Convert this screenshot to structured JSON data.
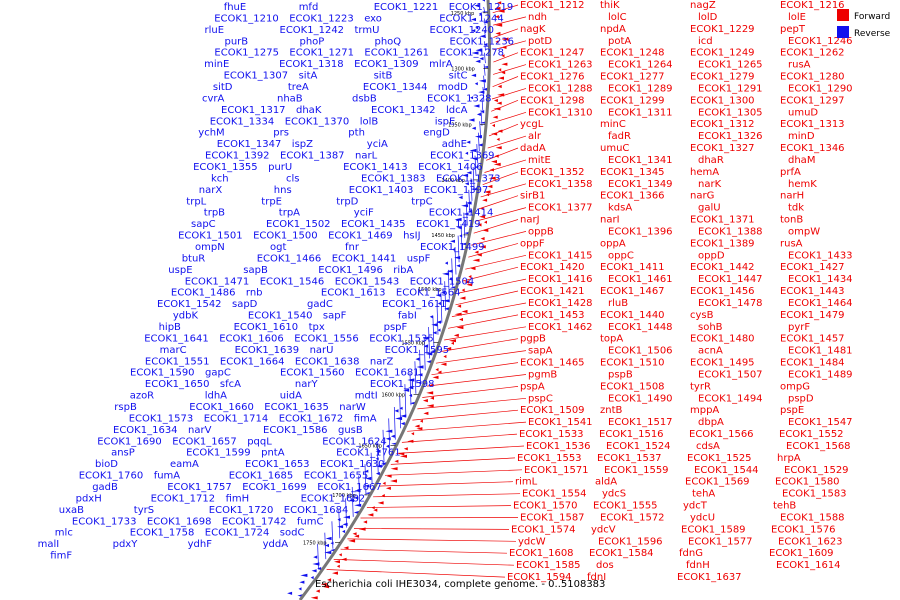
{
  "caption": "Escherichia coli IHE3034, complete genome. - 0..5108383",
  "legend": [
    {
      "label": "Forward",
      "color": "#ee0000"
    },
    {
      "label": "Reverse",
      "color": "#1010ee"
    }
  ],
  "colors": {
    "forward": "#ee0000",
    "reverse": "#1010ee",
    "backbone": "#777777"
  },
  "ticks": [
    "1250 kbp",
    "1300 kbp",
    "1350 kbp",
    "1400 kbp",
    "1450 kbp",
    "1500 kbp",
    "1550 kbp",
    "1600 kbp",
    "1650 kbp",
    "1700 kbp",
    "1750 kbp"
  ],
  "forward_labels": [
    "ECOK1_1212",
    "thiK",
    "nagZ",
    "ECOK1_1216",
    "ndh",
    "lolC",
    "lolD",
    "lolE",
    "nagK",
    "npdA",
    "ECOK1_1229",
    "pepT",
    "potD",
    "potA",
    "icd",
    "ECOK1_1246",
    "ECOK1_1247",
    "ECOK1_1248",
    "ECOK1_1249",
    "ECOK1_1262",
    "ECOK1_1263",
    "ECOK1_1264",
    "ECOK1_1265",
    "rusA",
    "ECOK1_1276",
    "ECOK1_1277",
    "ECOK1_1279",
    "ECOK1_1280",
    "ECOK1_1288",
    "ECOK1_1289",
    "ECOK1_1291",
    "ECOK1_1290",
    "ECOK1_1298",
    "ECOK1_1299",
    "ECOK1_1300",
    "ECOK1_1297",
    "ECOK1_1310",
    "ECOK1_1311",
    "ECOK1_1305",
    "umuD",
    "ycgL",
    "minC",
    "ECOK1_1312",
    "ECOK1_1313",
    "alr",
    "fadR",
    "ECOK1_1326",
    "minD",
    "dadA",
    "umuC",
    "ECOK1_1327",
    "ECOK1_1346",
    "mitE",
    "ECOK1_1341",
    "dhaR",
    "dhaM",
    "ECOK1_1352",
    "ECOK1_1345",
    "hemA",
    "prfA",
    "ECOK1_1358",
    "ECOK1_1349",
    "narK",
    "hemK",
    "sirB1",
    "ECOK1_1366",
    "narG",
    "narH",
    "ECOK1_1377",
    "kdsA",
    "galU",
    "tdk",
    "narJ",
    "narI",
    "ECOK1_1371",
    "tonB",
    "oppB",
    "ECOK1_1396",
    "ECOK1_1388",
    "ompW",
    "oppF",
    "oppA",
    "ECOK1_1389",
    "rusA",
    "ECOK1_1415",
    "oppC",
    "oppD",
    "ECOK1_1433",
    "ECOK1_1420",
    "ECOK1_1411",
    "ECOK1_1442",
    "ECOK1_1427",
    "ECOK1_1416",
    "ECOK1_1461",
    "ECOK1_1447",
    "ECOK1_1434",
    "ECOK1_1421",
    "ECOK1_1467",
    "ECOK1_1456",
    "ECOK1_1443",
    "ECOK1_1428",
    "rluB",
    "ECOK1_1478",
    "ECOK1_1464",
    "ECOK1_1453",
    "ECOK1_1440",
    "cysB",
    "ECOK1_1479",
    "ECOK1_1462",
    "ECOK1_1448",
    "sohB",
    "pyrF",
    "pgpB",
    "topA",
    "ECOK1_1480",
    "ECOK1_1457",
    "sapA",
    "ECOK1_1506",
    "acnA",
    "ECOK1_1481",
    "ECOK1_1465",
    "ECOK1_1510",
    "ECOK1_1495",
    "ECOK1_1484",
    "pgmB",
    "pspB",
    "ECOK1_1507",
    "ECOK1_1489",
    "pspA",
    "ECOK1_1508",
    "tyrR",
    "ompG",
    "pspC",
    "ECOK1_1490",
    "ECOK1_1494",
    "pspD",
    "ECOK1_1509",
    "zntB",
    "mppA",
    "pspE",
    "ECOK1_1541",
    "ECOK1_1517",
    "dbpA",
    "ECOK1_1547",
    "ECOK1_1533",
    "ECOK1_1516",
    "ECOK1_1566",
    "ECOK1_1552",
    "ECOK1_1536",
    "ECOK1_1524",
    "cdsA",
    "ECOK1_1568",
    "ECOK1_1553",
    "ECOK1_1537",
    "ECOK1_1525",
    "hrpA",
    "ECOK1_1571",
    "ECOK1_1559",
    "ECOK1_1544",
    "ECOK1_1529",
    "rimL",
    "aldA",
    "ECOK1_1569",
    "ECOK1_1580",
    "ECOK1_1554",
    "ydcS",
    "tehA",
    "ECOK1_1583",
    "ECOK1_1570",
    "ECOK1_1555",
    "ydcT",
    "tehB",
    "ECOK1_1587",
    "ECOK1_1572",
    "ydcU",
    "ECOK1_1588",
    "ECOK1_1574",
    "ydcV",
    "ECOK1_1589",
    "ECOK1_1576",
    "ydcW",
    "ECOK1_1596",
    "ECOK1_1577",
    "ECOK1_1623",
    "ECOK1_1608",
    "ECOK1_1584",
    "fdnG",
    "ECOK1_1609",
    "ECOK1_1585",
    "dos",
    "fdnH",
    "ECOK1_1614",
    "ECOK1_1594",
    "fdnI",
    "ECOK1_1637"
  ],
  "reverse_labels": [
    "fhuE",
    "mfd",
    "ECOK1_1221",
    "ECOK1_1219",
    "ECOK1_1210",
    "ECOK1_1223",
    "exo",
    "ECOK1_1244",
    "rluE",
    "ECOK1_1242",
    "trmU",
    "ECOK1_1240",
    "purB",
    "phoP",
    "phoQ",
    "ECOK1_1236",
    "ECOK1_1275",
    "ECOK1_1271",
    "ECOK1_1261",
    "ECOK1_1278",
    "minE",
    "ECOK1_1318",
    "ECOK1_1309",
    "mlrA",
    "ECOK1_1307",
    "sitA",
    "sitB",
    "sitC",
    "sitD",
    "treA",
    "ECOK1_1344",
    "modD",
    "cvrA",
    "nhaB",
    "dsbB",
    "ECOK1_1328",
    "ECOK1_1317",
    "dhaK",
    "ECOK1_1342",
    "ldcA",
    "ECOK1_1334",
    "ECOK1_1370",
    "lolB",
    "ispE",
    "ychM",
    "prs",
    "pth",
    "engD",
    "ECOK1_1347",
    "ispZ",
    "yciA",
    "adhE",
    "ECOK1_1392",
    "ECOK1_1387",
    "narL",
    "ECOK1_1369",
    "ECOK1_1355",
    "purU",
    "ECOK1_1413",
    "ECOK1_1406",
    "kch",
    "cls",
    "ECOK1_1383",
    "ECOK1_1373",
    "narX",
    "hns",
    "ECOK1_1403",
    "ECOK1_1397",
    "trpL",
    "trpE",
    "trpD",
    "trpC",
    "trpB",
    "trpA",
    "yciF",
    "ECOK1_1414",
    "sapC",
    "ECOK1_1502",
    "ECOK1_1435",
    "ECOK1_1419",
    "ECOK1_1501",
    "ECOK1_1500",
    "ECOK1_1469",
    "hsIJ",
    "ompN",
    "ogt",
    "fnr",
    "ECOK1_1499",
    "btuR",
    "ECOK1_1466",
    "ECOK1_1441",
    "uspF",
    "uspE",
    "sapB",
    "ECOK1_1496",
    "ribA",
    "ECOK1_1471",
    "ECOK1_1546",
    "ECOK1_1543",
    "ECOK1_1504",
    "ECOK1_1486",
    "rnb",
    "ECOK1_1613",
    "ECOK1_1564",
    "ECOK1_1542",
    "sapD",
    "gadC",
    "ECOK1_1611",
    "ydbK",
    "ECOK1_1540",
    "sapF",
    "fabI",
    "hipB",
    "ECOK1_1610",
    "tpx",
    "pspF",
    "ECOK1_1641",
    "ECOK1_1606",
    "ECOK1_1556",
    "ECOK1_1535",
    "marC",
    "ECOK1_1639",
    "narU",
    "ECOK1_1595",
    "ECOK1_1551",
    "ECOK1_1664",
    "ECOK1_1638",
    "narZ",
    "ECOK1_1590",
    "gapC",
    "ECOK1_1560",
    "ECOK1_1681",
    "ECOK1_1650",
    "sfcA",
    "narY",
    "ECOK1_1598",
    "azoR",
    "ldhA",
    "uidA",
    "mdtI",
    "rspB",
    "ECOK1_1660",
    "ECOK1_1635",
    "narW",
    "ECOK1_1573",
    "ECOK1_1714",
    "ECOK1_1672",
    "fimA",
    "ECOK1_1634",
    "narV",
    "ECOK1_1586",
    "gusB",
    "ECOK1_1690",
    "ECOK1_1657",
    "pqqL",
    "ECOK1_1624",
    "ansP",
    "ECOK1_1599",
    "pntA",
    "ECOK1_1761",
    "bioD",
    "eamA",
    "ECOK1_1653",
    "ECOK1_1630",
    "ECOK1_1760",
    "fumA",
    "ECOK1_1685",
    "ECOK1_1655",
    "gadB",
    "ECOK1_1757",
    "ECOK1_1699",
    "ECOK1_1667",
    "pdxH",
    "ECOK1_1712",
    "fimH",
    "ECOK1_1682",
    "uxaB",
    "tyrS",
    "ECOK1_1720",
    "ECOK1_1684",
    "ECOK1_1733",
    "ECOK1_1698",
    "ECOK1_1742",
    "fumC",
    "mlc",
    "ECOK1_1758",
    "ECOK1_1724",
    "sodC",
    "malI",
    "pdxY",
    "ydhF",
    "yddA",
    "fimF"
  ]
}
